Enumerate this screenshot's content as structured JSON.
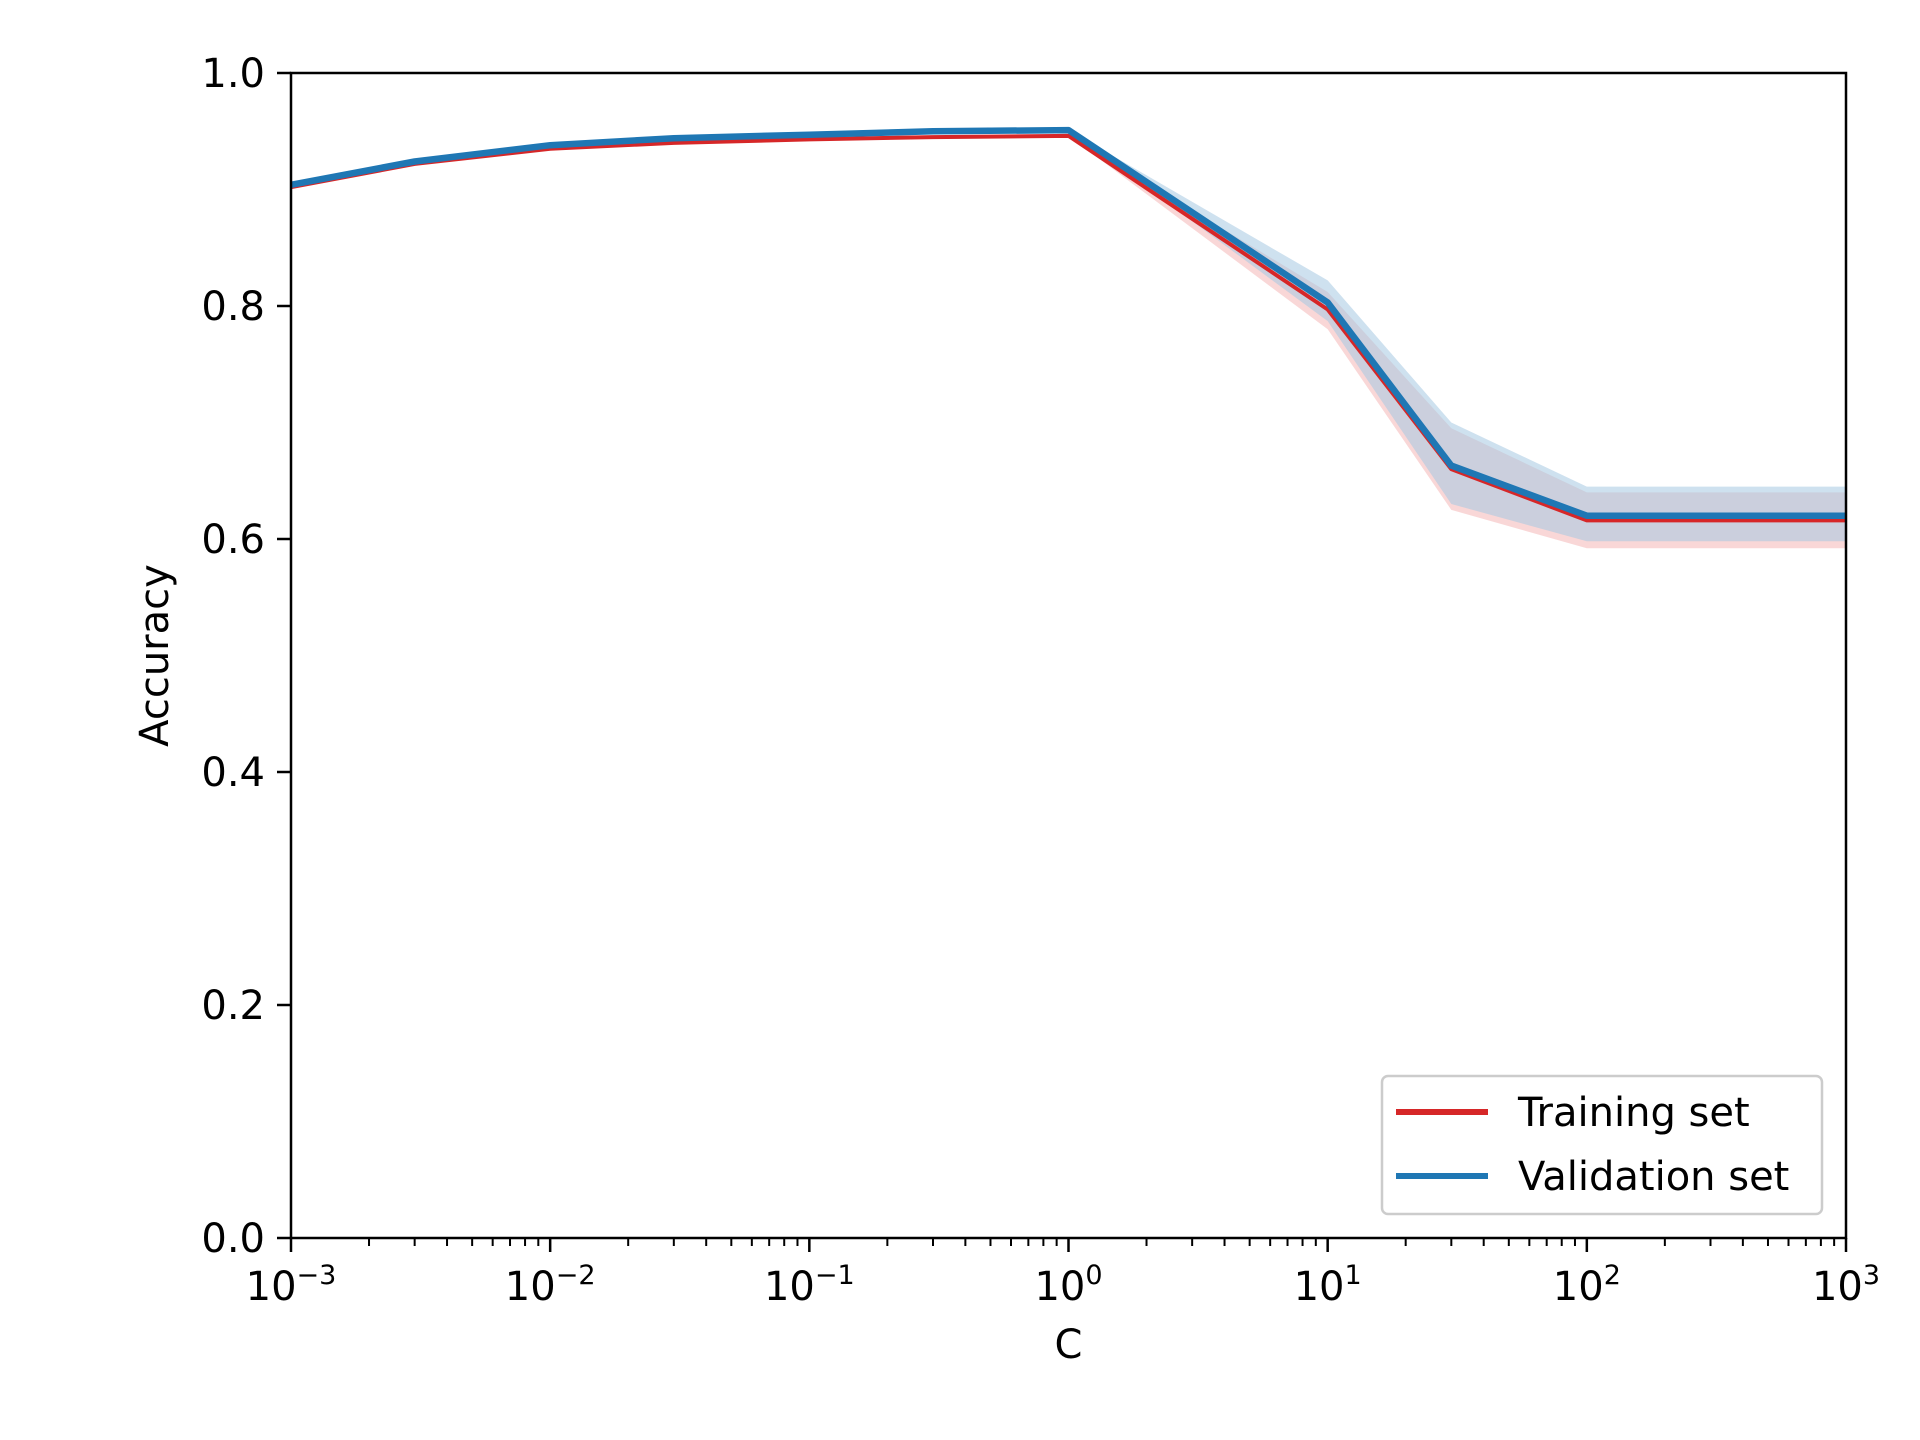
{
  "chart_data": {
    "type": "line",
    "xscale": "log",
    "xlabel": "C",
    "ylabel": "Accuracy",
    "xlim": [
      0.001,
      1000
    ],
    "ylim": [
      0.0,
      1.0
    ],
    "grid": false,
    "legend_position": "bottom-right",
    "x": [
      0.001,
      0.003,
      0.01,
      0.03,
      0.1,
      0.3,
      1,
      10,
      30,
      100,
      1000
    ],
    "x_tick_labels": [
      {
        "value": 0.001,
        "base": "10",
        "exp": "−3"
      },
      {
        "value": 0.01,
        "base": "10",
        "exp": "−2"
      },
      {
        "value": 0.1,
        "base": "10",
        "exp": "−1"
      },
      {
        "value": 1,
        "base": "10",
        "exp": "0"
      },
      {
        "value": 10,
        "base": "10",
        "exp": "1"
      },
      {
        "value": 100,
        "base": "10",
        "exp": "2"
      },
      {
        "value": 1000,
        "base": "10",
        "exp": "3"
      }
    ],
    "y_ticks": [
      0.0,
      0.2,
      0.4,
      0.6,
      0.8,
      1.0
    ],
    "y_tick_labels": [
      "0.0",
      "0.2",
      "0.4",
      "0.6",
      "0.8",
      "1.0"
    ],
    "series": [
      {
        "name": "Training set",
        "color": "#d62728",
        "values": [
          0.902,
          0.922,
          0.935,
          0.94,
          0.943,
          0.945,
          0.946,
          0.797,
          0.66,
          0.616,
          0.616
        ],
        "band_lower": [
          0.902,
          0.922,
          0.935,
          0.94,
          0.943,
          0.945,
          0.946,
          0.78,
          0.625,
          0.592,
          0.592
        ],
        "band_upper": [
          0.902,
          0.922,
          0.935,
          0.94,
          0.943,
          0.945,
          0.946,
          0.812,
          0.695,
          0.64,
          0.64
        ],
        "band_color": "#f4b6b7"
      },
      {
        "name": "Validation set",
        "color": "#1f77b4",
        "values": [
          0.904,
          0.924,
          0.938,
          0.944,
          0.947,
          0.95,
          0.951,
          0.803,
          0.663,
          0.62,
          0.62
        ],
        "band_lower": [
          0.904,
          0.924,
          0.938,
          0.944,
          0.947,
          0.95,
          0.951,
          0.787,
          0.63,
          0.598,
          0.598
        ],
        "band_upper": [
          0.904,
          0.924,
          0.938,
          0.944,
          0.947,
          0.95,
          0.951,
          0.822,
          0.7,
          0.645,
          0.645
        ],
        "band_color": "#a6c8e2"
      }
    ]
  }
}
